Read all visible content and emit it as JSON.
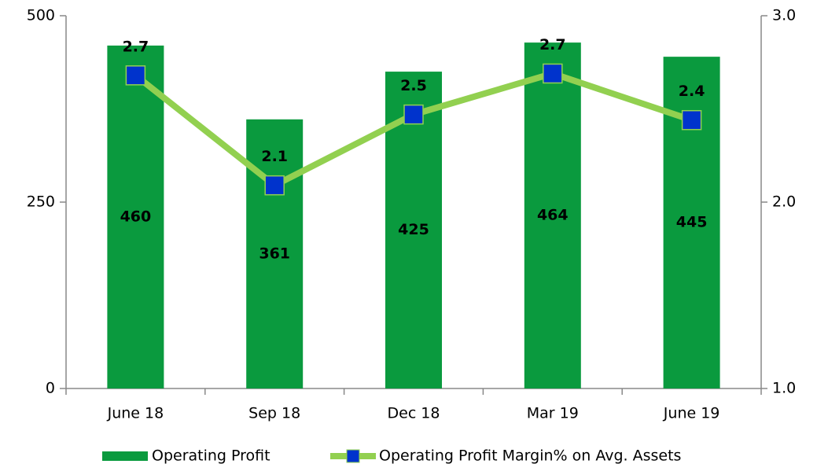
{
  "chart_data": {
    "type": "bar-line",
    "categories": [
      "June 18",
      "Sep 18",
      "Dec 18",
      "Mar 19",
      "June 19"
    ],
    "series": [
      {
        "name": "Operating Profit",
        "color": "#0a9a3e",
        "type": "bar",
        "values": [
          460,
          361,
          425,
          464,
          445
        ]
      },
      {
        "name": "Operating Profit Margin% on Avg. Assets",
        "color": "#92d050",
        "marker_color": "#0033cc",
        "type": "line",
        "axis": "y2",
        "values": [
          2.68,
          2.09,
          2.47,
          2.69,
          2.44
        ],
        "value_labels": [
          "2.7",
          "2.1",
          "2.5",
          "2.7",
          "2.4"
        ]
      }
    ],
    "ylim": [
      0,
      500
    ],
    "yticks": [
      0,
      250,
      500
    ],
    "y2lim": [
      1,
      3
    ],
    "y2ticks": [
      {
        "value": 1,
        "label": "1.0"
      },
      {
        "value": 2,
        "label": "2.0"
      },
      {
        "value": 3,
        "label": "3.0"
      }
    ],
    "legend": "bottom"
  }
}
